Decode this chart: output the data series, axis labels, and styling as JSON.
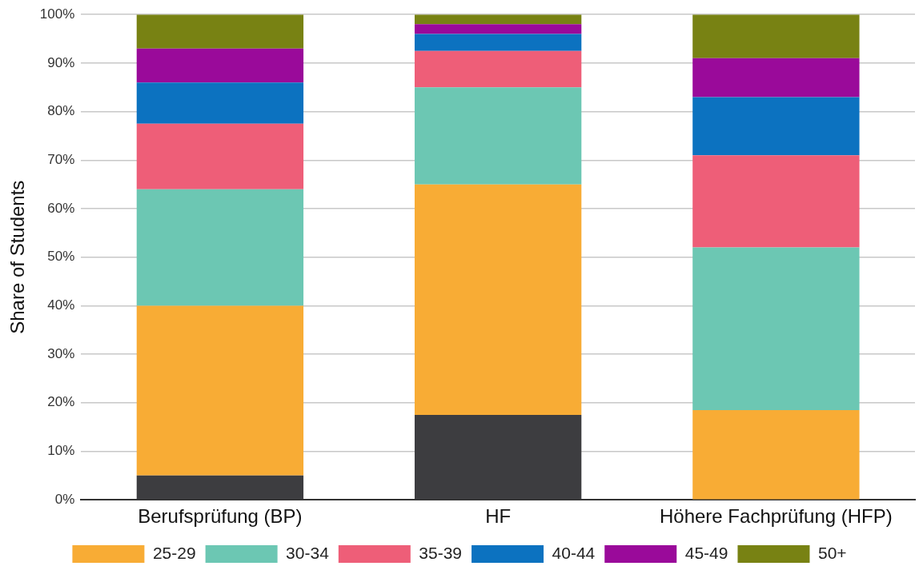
{
  "chart_data": {
    "type": "bar",
    "stacked": true,
    "ylabel": "Share of Students",
    "categories": [
      "Berufsprüfung (BP)",
      "HF",
      "Höhere Fachprüfung (HFP)"
    ],
    "series": [
      {
        "color": "#3d3d40",
        "values": [
          5,
          17.5,
          0
        ]
      },
      {
        "name": "25-29",
        "color": "#f8ac35",
        "values": [
          35,
          47.5,
          18.5
        ]
      },
      {
        "name": "30-34",
        "color": "#6cc7b3",
        "values": [
          24,
          20,
          33.5
        ]
      },
      {
        "name": "35-39",
        "color": "#ee5e78",
        "values": [
          13.5,
          7.5,
          19
        ]
      },
      {
        "name": "40-44",
        "color": "#0c72c0",
        "values": [
          8.5,
          3.5,
          12
        ]
      },
      {
        "name": "45-49",
        "color": "#9a0a9a",
        "values": [
          7,
          2,
          8
        ]
      },
      {
        "name": "50+",
        "color": "#788213",
        "values": [
          7,
          2,
          9
        ]
      }
    ],
    "ylim": [
      0,
      100
    ],
    "yticks": [
      {
        "value": 0,
        "label": "0%"
      },
      {
        "value": 10,
        "label": "10%"
      },
      {
        "value": 20,
        "label": "20%"
      },
      {
        "value": 30,
        "label": "30%"
      },
      {
        "value": 40,
        "label": "40%"
      },
      {
        "value": 50,
        "label": "50%"
      },
      {
        "value": 60,
        "label": "60%"
      },
      {
        "value": 70,
        "label": "70%"
      },
      {
        "value": 80,
        "label": "80%"
      },
      {
        "value": 90,
        "label": "90%"
      },
      {
        "value": 100,
        "label": "100%"
      }
    ],
    "grid": "y",
    "legend": "bottom"
  }
}
